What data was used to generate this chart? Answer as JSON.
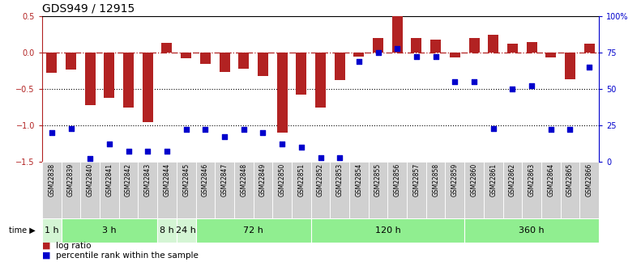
{
  "title": "GDS949 / 12915",
  "samples": [
    "GSM22838",
    "GSM22839",
    "GSM22840",
    "GSM22841",
    "GSM22842",
    "GSM22843",
    "GSM22844",
    "GSM22845",
    "GSM22846",
    "GSM22847",
    "GSM22848",
    "GSM22849",
    "GSM22850",
    "GSM22851",
    "GSM22852",
    "GSM22853",
    "GSM22854",
    "GSM22855",
    "GSM22856",
    "GSM22857",
    "GSM22858",
    "GSM22859",
    "GSM22860",
    "GSM22861",
    "GSM22862",
    "GSM22863",
    "GSM22864",
    "GSM22865",
    "GSM22866"
  ],
  "log_ratio": [
    -0.28,
    -0.23,
    -0.72,
    -0.62,
    -0.75,
    -0.95,
    0.13,
    -0.08,
    -0.15,
    -0.27,
    -0.22,
    -0.32,
    -1.1,
    -0.58,
    -0.75,
    -0.38,
    -0.05,
    0.2,
    0.5,
    0.2,
    0.18,
    -0.07,
    0.2,
    0.25,
    0.12,
    0.15,
    -0.07,
    -0.37,
    0.12
  ],
  "percentile": [
    20,
    23,
    2,
    12,
    7,
    7,
    7,
    22,
    22,
    17,
    22,
    20,
    12,
    10,
    3,
    3,
    69,
    75,
    78,
    72,
    72,
    55,
    55,
    23,
    50,
    52,
    22,
    22,
    65
  ],
  "time_groups": [
    {
      "label": "1 h",
      "start": 0,
      "end": 1,
      "color": "#d4f5d4"
    },
    {
      "label": "3 h",
      "start": 1,
      "end": 6,
      "color": "#90ee90"
    },
    {
      "label": "8 h",
      "start": 6,
      "end": 7,
      "color": "#d4f5d4"
    },
    {
      "label": "24 h",
      "start": 7,
      "end": 8,
      "color": "#d4f5d4"
    },
    {
      "label": "72 h",
      "start": 8,
      "end": 14,
      "color": "#90ee90"
    },
    {
      "label": "120 h",
      "start": 14,
      "end": 22,
      "color": "#90ee90"
    },
    {
      "label": "360 h",
      "start": 22,
      "end": 29,
      "color": "#90ee90"
    }
  ],
  "bar_color": "#b22222",
  "dot_color": "#0000cc",
  "ylim_left": [
    -1.5,
    0.5
  ],
  "ylim_right": [
    0,
    100
  ],
  "bar_width": 0.55,
  "title_fontsize": 10,
  "label_fontsize": 6.5,
  "tick_fontsize": 7,
  "sample_fontsize": 5.5,
  "time_fontsize": 8,
  "legend_fontsize": 7.5
}
